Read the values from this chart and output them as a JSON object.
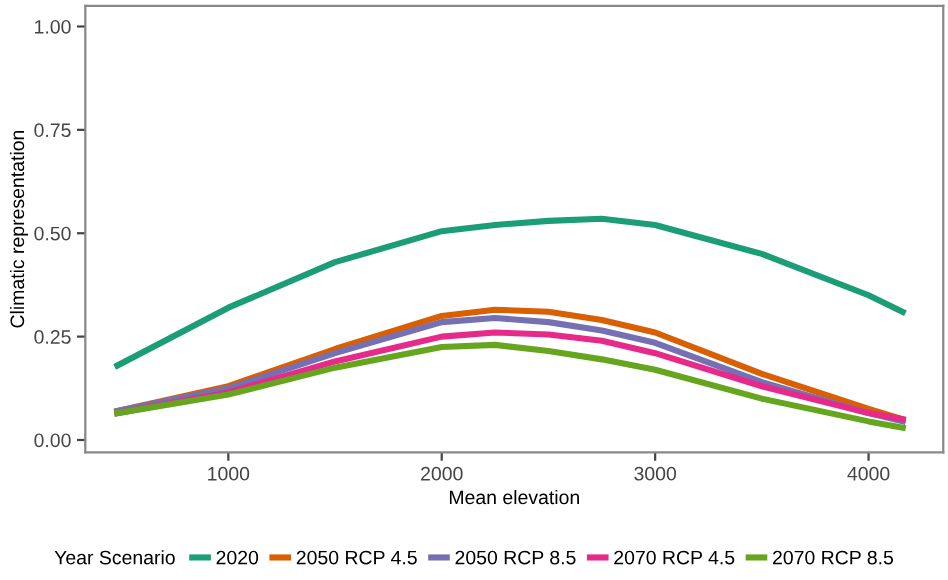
{
  "chart_data": {
    "type": "line",
    "xlabel": "Mean elevation",
    "ylabel": "Climatic representation",
    "legend_title": "Year Scenario",
    "xlim": [
      330,
      4350
    ],
    "ylim": [
      -0.03,
      1.05
    ],
    "xticks": [
      1000,
      2000,
      3000,
      4000
    ],
    "yticks": [
      {
        "value": 0,
        "label": "0.00"
      },
      {
        "value": 0.25,
        "label": "0.25"
      },
      {
        "value": 0.5,
        "label": "0.50"
      },
      {
        "value": 0.75,
        "label": "0.75"
      },
      {
        "value": 1,
        "label": "1.00"
      }
    ],
    "x": [
      480,
      1000,
      1500,
      2000,
      2250,
      2500,
      2750,
      3000,
      3500,
      4000,
      4160
    ],
    "series": [
      {
        "name": "2020",
        "color": "#1b9e77",
        "values": [
          0.18,
          0.32,
          0.43,
          0.505,
          0.52,
          0.53,
          0.535,
          0.52,
          0.45,
          0.35,
          0.31
        ]
      },
      {
        "name": "2050 RCP 4.5",
        "color": "#d95f02",
        "values": [
          0.07,
          0.13,
          0.22,
          0.3,
          0.315,
          0.31,
          0.29,
          0.26,
          0.16,
          0.075,
          0.05
        ]
      },
      {
        "name": "2050 RCP 8.5",
        "color": "#7570b3",
        "values": [
          0.07,
          0.125,
          0.21,
          0.285,
          0.295,
          0.285,
          0.265,
          0.235,
          0.14,
          0.065,
          0.045
        ]
      },
      {
        "name": "2070 RCP 4.5",
        "color": "#e7298a",
        "values": [
          0.065,
          0.115,
          0.19,
          0.25,
          0.26,
          0.255,
          0.24,
          0.21,
          0.13,
          0.065,
          0.05
        ]
      },
      {
        "name": "2070 RCP 8.5",
        "color": "#66a61e",
        "values": [
          0.065,
          0.11,
          0.175,
          0.225,
          0.23,
          0.215,
          0.195,
          0.17,
          0.1,
          0.045,
          0.03
        ]
      }
    ],
    "legend": "bottom",
    "grid": false
  }
}
